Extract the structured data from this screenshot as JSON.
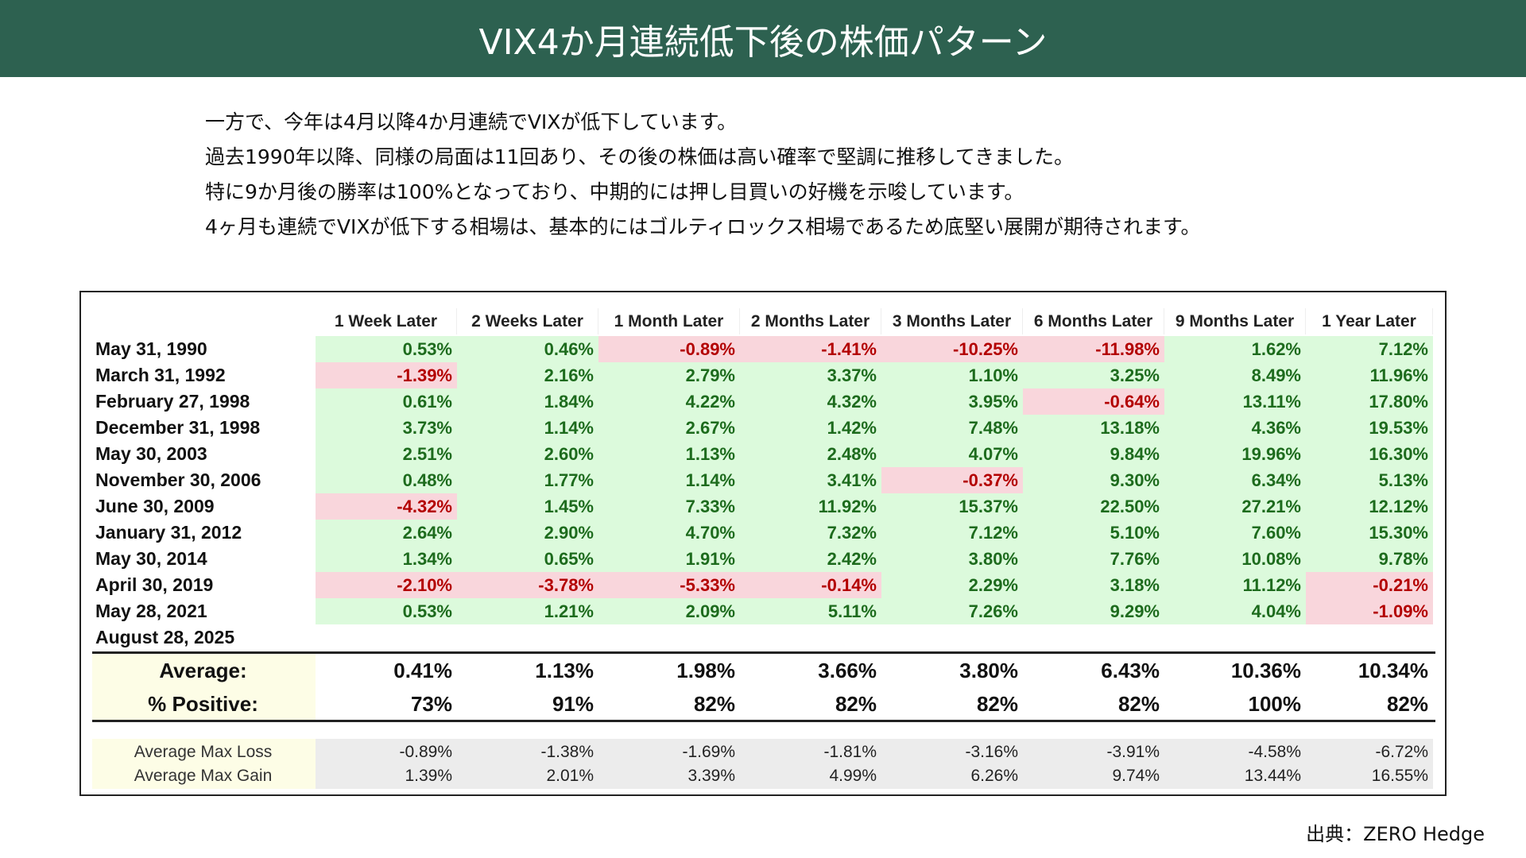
{
  "title": "VIX4か月連続低下後の株価パターン",
  "intro": [
    "一方で、今年は4月以降4か月連続でVIXが低下しています。",
    "過去1990年以降、同様の局面は11回あり、その後の株価は高い確率で堅調に推移してきました。",
    "特に9か月後の勝率は100%となっており、中期的には押し目買いの好機を示唆しています。",
    "4ヶ月も連続でVIXが低下する相場は、基本的にはゴルティロックス相場であるため底堅い展開が期待されます。"
  ],
  "table": {
    "columns": [
      "1 Week Later",
      "2 Weeks Later",
      "1 Month Later",
      "2 Months Later",
      "3 Months Later",
      "6 Months Later",
      "9 Months Later",
      "1 Year Later"
    ],
    "rows": [
      {
        "date": "May 31, 1990",
        "values": [
          "0.53%",
          "0.46%",
          "-0.89%",
          "-1.41%",
          "-10.25%",
          "-11.98%",
          "1.62%",
          "7.12%"
        ]
      },
      {
        "date": "March 31, 1992",
        "values": [
          "-1.39%",
          "2.16%",
          "2.79%",
          "3.37%",
          "1.10%",
          "3.25%",
          "8.49%",
          "11.96%"
        ]
      },
      {
        "date": "February 27, 1998",
        "values": [
          "0.61%",
          "1.84%",
          "4.22%",
          "4.32%",
          "3.95%",
          "-0.64%",
          "13.11%",
          "17.80%"
        ]
      },
      {
        "date": "December 31, 1998",
        "values": [
          "3.73%",
          "1.14%",
          "2.67%",
          "1.42%",
          "7.48%",
          "13.18%",
          "4.36%",
          "19.53%"
        ]
      },
      {
        "date": "May 30, 2003",
        "values": [
          "2.51%",
          "2.60%",
          "1.13%",
          "2.48%",
          "4.07%",
          "9.84%",
          "19.96%",
          "16.30%"
        ]
      },
      {
        "date": "November 30, 2006",
        "values": [
          "0.48%",
          "1.77%",
          "1.14%",
          "3.41%",
          "-0.37%",
          "9.30%",
          "6.34%",
          "5.13%"
        ]
      },
      {
        "date": "June 30, 2009",
        "values": [
          "-4.32%",
          "1.45%",
          "7.33%",
          "11.92%",
          "15.37%",
          "22.50%",
          "27.21%",
          "12.12%"
        ]
      },
      {
        "date": "January 31, 2012",
        "values": [
          "2.64%",
          "2.90%",
          "4.70%",
          "7.32%",
          "7.12%",
          "5.10%",
          "7.60%",
          "15.30%"
        ]
      },
      {
        "date": "May 30, 2014",
        "values": [
          "1.34%",
          "0.65%",
          "1.91%",
          "2.42%",
          "3.80%",
          "7.76%",
          "10.08%",
          "9.78%"
        ]
      },
      {
        "date": "April 30, 2019",
        "values": [
          "-2.10%",
          "-3.78%",
          "-5.33%",
          "-0.14%",
          "2.29%",
          "3.18%",
          "11.12%",
          "-0.21%"
        ]
      },
      {
        "date": "May 28, 2021",
        "values": [
          "0.53%",
          "1.21%",
          "2.09%",
          "5.11%",
          "7.26%",
          "9.29%",
          "4.04%",
          "-1.09%"
        ]
      },
      {
        "date": "August 28, 2025",
        "values": []
      }
    ],
    "summary": [
      {
        "label": "Average:",
        "values": [
          "0.41%",
          "1.13%",
          "1.98%",
          "3.66%",
          "3.80%",
          "6.43%",
          "10.36%",
          "10.34%"
        ]
      },
      {
        "label": "% Positive:",
        "values": [
          "73%",
          "91%",
          "82%",
          "82%",
          "82%",
          "82%",
          "100%",
          "82%"
        ]
      }
    ],
    "max": [
      {
        "label": "Average Max Loss",
        "values": [
          "-0.89%",
          "-1.38%",
          "-1.69%",
          "-1.81%",
          "-3.16%",
          "-3.91%",
          "-4.58%",
          "-6.72%"
        ]
      },
      {
        "label": "Average Max Gain",
        "values": [
          "1.39%",
          "2.01%",
          "3.39%",
          "4.99%",
          "6.26%",
          "9.74%",
          "13.44%",
          "16.55%"
        ]
      }
    ]
  },
  "source": "出典：ZERO Hedge",
  "colors": {
    "header": "#2d6150",
    "positive_bg": "#dcfadc",
    "negative_bg": "#f9d6dc"
  }
}
